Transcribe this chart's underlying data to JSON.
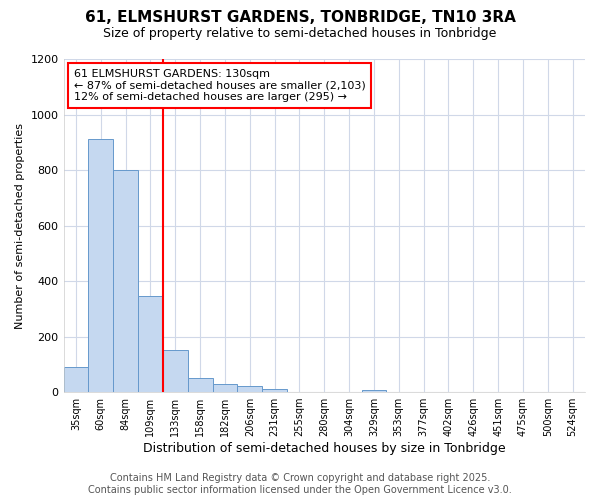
{
  "title": "61, ELMSHURST GARDENS, TONBRIDGE, TN10 3RA",
  "subtitle": "Size of property relative to semi-detached houses in Tonbridge",
  "xlabel": "Distribution of semi-detached houses by size in Tonbridge",
  "ylabel": "Number of semi-detached properties",
  "categories": [
    "35sqm",
    "60sqm",
    "84sqm",
    "109sqm",
    "133sqm",
    "158sqm",
    "182sqm",
    "206sqm",
    "231sqm",
    "255sqm",
    "280sqm",
    "304sqm",
    "329sqm",
    "353sqm",
    "377sqm",
    "402sqm",
    "426sqm",
    "451sqm",
    "475sqm",
    "500sqm",
    "524sqm"
  ],
  "values": [
    90,
    910,
    800,
    345,
    150,
    52,
    30,
    22,
    10,
    0,
    0,
    0,
    8,
    0,
    0,
    0,
    0,
    0,
    0,
    0,
    0
  ],
  "bar_color": "#c5d8f0",
  "bar_edge_color": "#6699cc",
  "annotation_line1": "61 ELMSHURST GARDENS: 130sqm",
  "annotation_line2": "← 87% of semi-detached houses are smaller (2,103)",
  "annotation_line3": "12% of semi-detached houses are larger (295) →",
  "redline_bar_index": 4,
  "footer_line1": "Contains HM Land Registry data © Crown copyright and database right 2025.",
  "footer_line2": "Contains public sector information licensed under the Open Government Licence v3.0.",
  "ylim": [
    0,
    1200
  ],
  "yticks": [
    0,
    200,
    400,
    600,
    800,
    1000,
    1200
  ],
  "fig_width": 6.0,
  "fig_height": 5.0,
  "dpi": 100,
  "background_color": "#ffffff",
  "plot_background": "#ffffff",
  "grid_color": "#d0d8e8",
  "title_fontsize": 11,
  "subtitle_fontsize": 9,
  "ylabel_fontsize": 8,
  "xlabel_fontsize": 9,
  "tick_fontsize": 7,
  "footer_fontsize": 7,
  "annot_fontsize": 8
}
